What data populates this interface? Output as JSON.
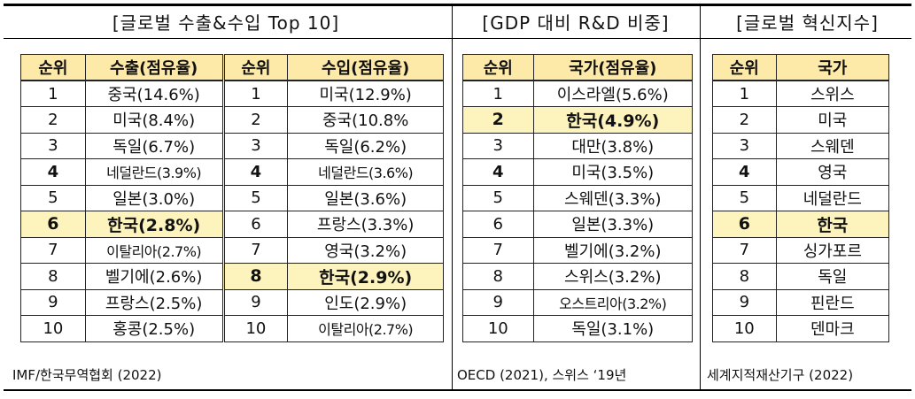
{
  "panels": [
    {
      "title": "[글로벌 수출&수입 Top 10]",
      "source": "IMF/한국무역협회 (2022)",
      "headers": [
        "순위",
        "수출(점유율)",
        "순위",
        "수입(점유율)"
      ],
      "rows": [
        [
          "1",
          "중국(14.6%)",
          "1",
          "미국(12.9%)"
        ],
        [
          "2",
          "미국(8.4%)",
          "2",
          "중국(10.8%"
        ],
        [
          "3",
          "독일(6.7%)",
          "3",
          "독일(6.2%)"
        ],
        [
          "4",
          "네덜란드(3.9%)",
          "4",
          "네덜란드(3.6%)"
        ],
        [
          "5",
          "일본(3.0%)",
          "5",
          "일본(3.6%)"
        ],
        [
          "6",
          "한국(2.8%)",
          "6",
          "프랑스(3.3%)"
        ],
        [
          "7",
          "이탈리아(2.7%)",
          "7",
          "영국(3.2%)"
        ],
        [
          "8",
          "벨기에(2.6%)",
          "8",
          "한국(2.9%)"
        ],
        [
          "9",
          "프랑스(2.5%)",
          "9",
          "인도(2.9%)"
        ],
        [
          "10",
          "홍콩(2.5%)",
          "10",
          "이탈리아(2.7%)"
        ]
      ]
    },
    {
      "title": "[GDP 대비 R&D 비중]",
      "source": "OECD (2021), 스위스 ‘19년",
      "headers": [
        "순위",
        "국가(점유율)"
      ],
      "rows": [
        [
          "1",
          "이스라엘(5.6%)"
        ],
        [
          "2",
          "한국(4.9%)"
        ],
        [
          "3",
          "대만(3.8%)"
        ],
        [
          "4",
          "미국(3.5%)"
        ],
        [
          "5",
          "스웨덴(3.3%)"
        ],
        [
          "6",
          "일본(3.3%)"
        ],
        [
          "7",
          "벨기에(3.2%)"
        ],
        [
          "8",
          "스위스(3.2%)"
        ],
        [
          "9",
          "오스트리아(3.2%)"
        ],
        [
          "10",
          "독일(3.1%)"
        ]
      ]
    },
    {
      "title": "[글로벌 혁신지수]",
      "source": "세계지적재산기구 (2022)",
      "headers": [
        "순위",
        "국가"
      ],
      "rows": [
        [
          "1",
          "스위스"
        ],
        [
          "2",
          "미국"
        ],
        [
          "3",
          "스웨덴"
        ],
        [
          "4",
          "영국"
        ],
        [
          "5",
          "네덜란드"
        ],
        [
          "6",
          "한국"
        ],
        [
          "7",
          "싱가포르"
        ],
        [
          "8",
          "독일"
        ],
        [
          "9",
          "핀란드"
        ],
        [
          "10",
          "덴마크"
        ]
      ]
    }
  ],
  "highlight_color": "#fdf3bd",
  "header_color": "#fde9a8"
}
